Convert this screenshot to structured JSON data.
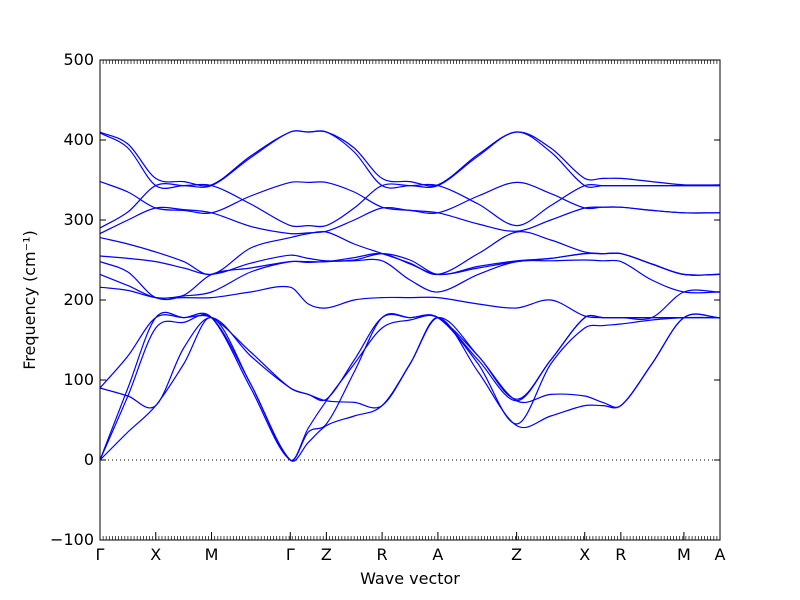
{
  "chart_data": {
    "type": "line",
    "xlabel": "Wave vector",
    "ylabel": "Frequency (cm⁻¹)",
    "ylim": [
      -100,
      500
    ],
    "y_ticks": [
      -100,
      0,
      100,
      200,
      300,
      400,
      500
    ],
    "y_tick_labels": [
      "−100",
      "0",
      "100",
      "200",
      "300",
      "400",
      "500"
    ],
    "x_ticks": [
      {
        "label": "Γ",
        "x": 0
      },
      {
        "label": "X",
        "x": 0.0899
      },
      {
        "label": "M",
        "x": 0.1799
      },
      {
        "label": "Γ",
        "x": 0.3069
      },
      {
        "label": "Z",
        "x": 0.3651
      },
      {
        "label": "R",
        "x": 0.455
      },
      {
        "label": "A",
        "x": 0.545
      },
      {
        "label": "Z",
        "x": 0.672
      },
      {
        "label": "X",
        "x": 0.7818
      },
      {
        "label": "R",
        "x": 0.8401
      },
      {
        "label": "M",
        "x": 0.9418
      },
      {
        "label": "A",
        "x": 1.0
      }
    ],
    "zero_line": {
      "y": 0,
      "style": "dotted"
    },
    "grid": false,
    "line_color": "#0000ff",
    "bands": [
      {
        "name": "b1",
        "x": [
          0,
          0.045,
          0.0899,
          0.135,
          0.1799,
          0.243,
          0.3069,
          0.336,
          0.3651,
          0.41,
          0.455,
          0.5,
          0.545,
          0.61,
          0.672,
          0.727,
          0.7818,
          0.811,
          0.8401,
          0.89,
          0.9418,
          1.0
        ],
        "y": [
          0,
          35,
          68,
          120,
          178,
          95,
          0,
          22,
          43,
          55,
          68,
          120,
          178,
          110,
          43,
          55,
          68,
          68,
          68,
          120,
          178,
          178
        ]
      },
      {
        "name": "b2",
        "x": [
          0,
          0.045,
          0.0899,
          0.135,
          0.1799,
          0.243,
          0.3069,
          0.336,
          0.3651,
          0.41,
          0.455,
          0.5,
          0.545,
          0.61,
          0.672,
          0.727,
          0.7818,
          0.811,
          0.8401,
          0.89,
          0.9418,
          1.0
        ],
        "y": [
          0,
          80,
          165,
          172,
          178,
          95,
          0,
          35,
          45,
          110,
          178,
          178,
          178,
          120,
          45,
          120,
          165,
          168,
          170,
          175,
          178,
          178
        ]
      },
      {
        "name": "b3",
        "x": [
          0,
          0.045,
          0.0899,
          0.135,
          0.1799,
          0.243,
          0.3069,
          0.336,
          0.3651,
          0.41,
          0.455,
          0.5,
          0.545,
          0.61,
          0.672,
          0.727,
          0.7818,
          0.811,
          0.8401,
          0.89,
          0.9418,
          1.0
        ],
        "y": [
          0,
          90,
          178,
          178,
          178,
          90,
          0,
          40,
          74,
          120,
          165,
          175,
          178,
          125,
          74,
          125,
          178,
          178,
          178,
          178,
          178,
          178
        ]
      },
      {
        "name": "b4",
        "x": [
          0,
          0.045,
          0.0899,
          0.135,
          0.1799,
          0.243,
          0.3069,
          0.336,
          0.3651,
          0.41,
          0.455,
          0.5,
          0.545,
          0.61,
          0.672,
          0.727,
          0.7818,
          0.811,
          0.8401,
          0.89,
          0.9418,
          1.0
        ],
        "y": [
          90,
          80,
          68,
          140,
          178,
          130,
          90,
          82,
          74,
          72,
          68,
          120,
          178,
          130,
          74,
          82,
          80,
          72,
          68,
          120,
          178,
          178
        ]
      },
      {
        "name": "b5",
        "x": [
          0,
          0.045,
          0.0899,
          0.135,
          0.1799,
          0.243,
          0.3069,
          0.336,
          0.3651,
          0.41,
          0.455,
          0.5,
          0.545,
          0.61,
          0.672,
          0.727,
          0.7818,
          0.811,
          0.8401,
          0.89,
          0.9418,
          1.0
        ],
        "y": [
          90,
          130,
          178,
          178,
          178,
          135,
          90,
          82,
          76,
          125,
          178,
          178,
          178,
          130,
          76,
          125,
          178,
          178,
          178,
          178,
          178,
          178
        ]
      },
      {
        "name": "b6",
        "x": [
          0,
          0.045,
          0.0899,
          0.135,
          0.1799,
          0.243,
          0.3069,
          0.336,
          0.3651,
          0.41,
          0.455,
          0.5,
          0.545,
          0.61,
          0.672,
          0.727,
          0.7818,
          0.811,
          0.8401,
          0.89,
          0.9418,
          1.0
        ],
        "y": [
          216,
          212,
          203,
          203,
          203,
          210,
          216,
          195,
          190,
          200,
          203,
          203,
          203,
          195,
          190,
          200,
          180,
          178,
          178,
          178,
          210,
          210
        ]
      },
      {
        "name": "b7",
        "x": [
          0,
          0.045,
          0.0899,
          0.135,
          0.1799,
          0.243,
          0.3069,
          0.336,
          0.3651,
          0.41,
          0.455,
          0.5,
          0.545,
          0.61,
          0.672,
          0.727,
          0.7818,
          0.811,
          0.8401,
          0.89,
          0.9418,
          1.0
        ],
        "y": [
          232,
          218,
          203,
          205,
          210,
          235,
          248,
          247,
          248,
          249,
          249,
          225,
          210,
          232,
          248,
          249,
          250,
          249,
          248,
          225,
          210,
          210
        ]
      },
      {
        "name": "b8",
        "x": [
          0,
          0.045,
          0.0899,
          0.135,
          0.1799,
          0.243,
          0.3069,
          0.336,
          0.3651,
          0.41,
          0.455,
          0.5,
          0.545,
          0.61,
          0.672,
          0.727,
          0.7818,
          0.811,
          0.8401,
          0.89,
          0.9418,
          1.0
        ],
        "y": [
          248,
          235,
          203,
          206,
          232,
          240,
          248,
          248,
          248,
          253,
          258,
          245,
          232,
          240,
          248,
          252,
          258,
          258,
          258,
          245,
          232,
          232
        ]
      },
      {
        "name": "b9",
        "x": [
          0,
          0.045,
          0.0899,
          0.135,
          0.1799,
          0.243,
          0.3069,
          0.336,
          0.3651,
          0.41,
          0.455,
          0.5,
          0.545,
          0.61,
          0.672,
          0.727,
          0.7818,
          0.811,
          0.8401,
          0.89,
          0.9418,
          1.0
        ],
        "y": [
          255,
          252,
          248,
          240,
          232,
          246,
          256,
          252,
          249,
          250,
          258,
          250,
          232,
          242,
          249,
          252,
          258,
          258,
          258,
          245,
          232,
          232
        ]
      },
      {
        "name": "b10",
        "x": [
          0,
          0.045,
          0.0899,
          0.135,
          0.1799,
          0.243,
          0.3069,
          0.336,
          0.3651,
          0.41,
          0.455,
          0.5,
          0.545,
          0.61,
          0.672,
          0.727,
          0.7818,
          0.811,
          0.8401,
          0.89,
          0.9418,
          1.0
        ],
        "y": [
          278,
          270,
          260,
          248,
          232,
          265,
          278,
          283,
          285,
          270,
          258,
          246,
          232,
          258,
          285,
          275,
          260,
          258,
          258,
          245,
          232,
          232
        ]
      },
      {
        "name": "b11",
        "x": [
          0,
          0.045,
          0.0899,
          0.135,
          0.1799,
          0.243,
          0.3069,
          0.336,
          0.3651,
          0.41,
          0.455,
          0.5,
          0.545,
          0.61,
          0.672,
          0.727,
          0.7818,
          0.811,
          0.8401,
          0.89,
          0.9418,
          1.0
        ],
        "y": [
          283,
          300,
          315,
          313,
          309,
          292,
          283,
          284,
          286,
          300,
          315,
          312,
          309,
          295,
          286,
          300,
          315,
          316,
          316,
          312,
          309,
          309
        ]
      },
      {
        "name": "b12",
        "x": [
          0,
          0.045,
          0.0899,
          0.135,
          0.1799,
          0.243,
          0.3069,
          0.336,
          0.3651,
          0.41,
          0.455,
          0.5,
          0.545,
          0.61,
          0.672,
          0.727,
          0.7818,
          0.811,
          0.8401,
          0.89,
          0.9418,
          1.0
        ],
        "y": [
          290,
          310,
          343,
          343,
          343,
          320,
          293,
          293,
          293,
          315,
          343,
          343,
          343,
          320,
          293,
          318,
          343,
          343,
          343,
          343,
          343,
          343
        ]
      },
      {
        "name": "b13",
        "x": [
          0,
          0.045,
          0.0899,
          0.135,
          0.1799,
          0.243,
          0.3069,
          0.336,
          0.3651,
          0.41,
          0.455,
          0.5,
          0.545,
          0.61,
          0.672,
          0.727,
          0.7818,
          0.811,
          0.8401,
          0.89,
          0.9418,
          1.0
        ],
        "y": [
          348,
          335,
          315,
          312,
          309,
          330,
          347,
          347,
          347,
          335,
          316,
          312,
          309,
          330,
          347,
          333,
          315,
          316,
          316,
          312,
          309,
          309
        ]
      },
      {
        "name": "b14",
        "x": [
          0,
          0.045,
          0.0899,
          0.135,
          0.1799,
          0.243,
          0.3069,
          0.336,
          0.3651,
          0.41,
          0.455,
          0.5,
          0.545,
          0.61,
          0.672,
          0.727,
          0.7818,
          0.811,
          0.8401,
          0.89,
          0.9418,
          1.0
        ],
        "y": [
          409,
          390,
          343,
          343,
          343,
          378,
          410,
          410,
          410,
          385,
          343,
          343,
          343,
          380,
          410,
          385,
          343,
          343,
          343,
          343,
          343,
          343
        ]
      },
      {
        "name": "b15",
        "x": [
          0,
          0.045,
          0.0899,
          0.135,
          0.1799,
          0.243,
          0.3069,
          0.336,
          0.3651,
          0.41,
          0.455,
          0.5,
          0.545,
          0.61,
          0.672,
          0.727,
          0.7818,
          0.811,
          0.8401,
          0.89,
          0.9418,
          1.0
        ],
        "y": [
          410,
          395,
          352,
          348,
          344,
          380,
          410,
          410,
          410,
          390,
          352,
          348,
          344,
          382,
          410,
          390,
          352,
          352,
          352,
          348,
          344,
          344
        ]
      }
    ]
  }
}
